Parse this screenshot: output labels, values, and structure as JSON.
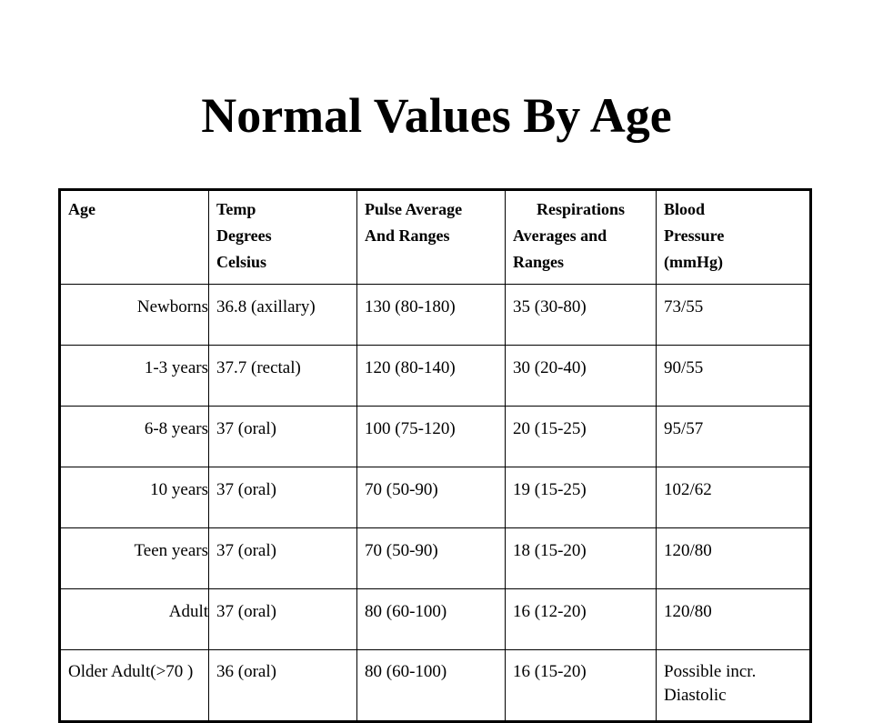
{
  "title": "Normal Values By Age",
  "table": {
    "headers": [
      [
        "Age"
      ],
      [
        "Temp",
        "Degrees",
        "Celsius"
      ],
      [
        "Pulse Average",
        "And Ranges"
      ],
      [
        "Respirations",
        "Averages and",
        "Ranges"
      ],
      [
        "Blood",
        "Pressure",
        "(mmHg)"
      ]
    ],
    "rows": [
      [
        "Newborns",
        "36.8 (axillary)",
        "130 (80-180)",
        "35 (30-80)",
        "73/55"
      ],
      [
        "1-3 years",
        "37.7 (rectal)",
        "120 (80-140)",
        "30 (20-40)",
        "90/55"
      ],
      [
        "6-8 years",
        "37 (oral)",
        "100 (75-120)",
        "20 (15-25)",
        "95/57"
      ],
      [
        "10 years",
        "37 (oral)",
        "70 (50-90)",
        "19 (15-25)",
        "102/62"
      ],
      [
        "Teen years",
        "37 (oral)",
        "70 (50-90)",
        "18 (15-20)",
        "120/80"
      ],
      [
        "Adult",
        "37 (oral)",
        "80 (60-100)",
        "16 (12-20)",
        "120/80"
      ],
      [
        "Older Adult(>70 )",
        "36 (oral)",
        "80 (60-100)",
        "16 (15-20)",
        "Possible incr. Diastolic"
      ]
    ]
  }
}
